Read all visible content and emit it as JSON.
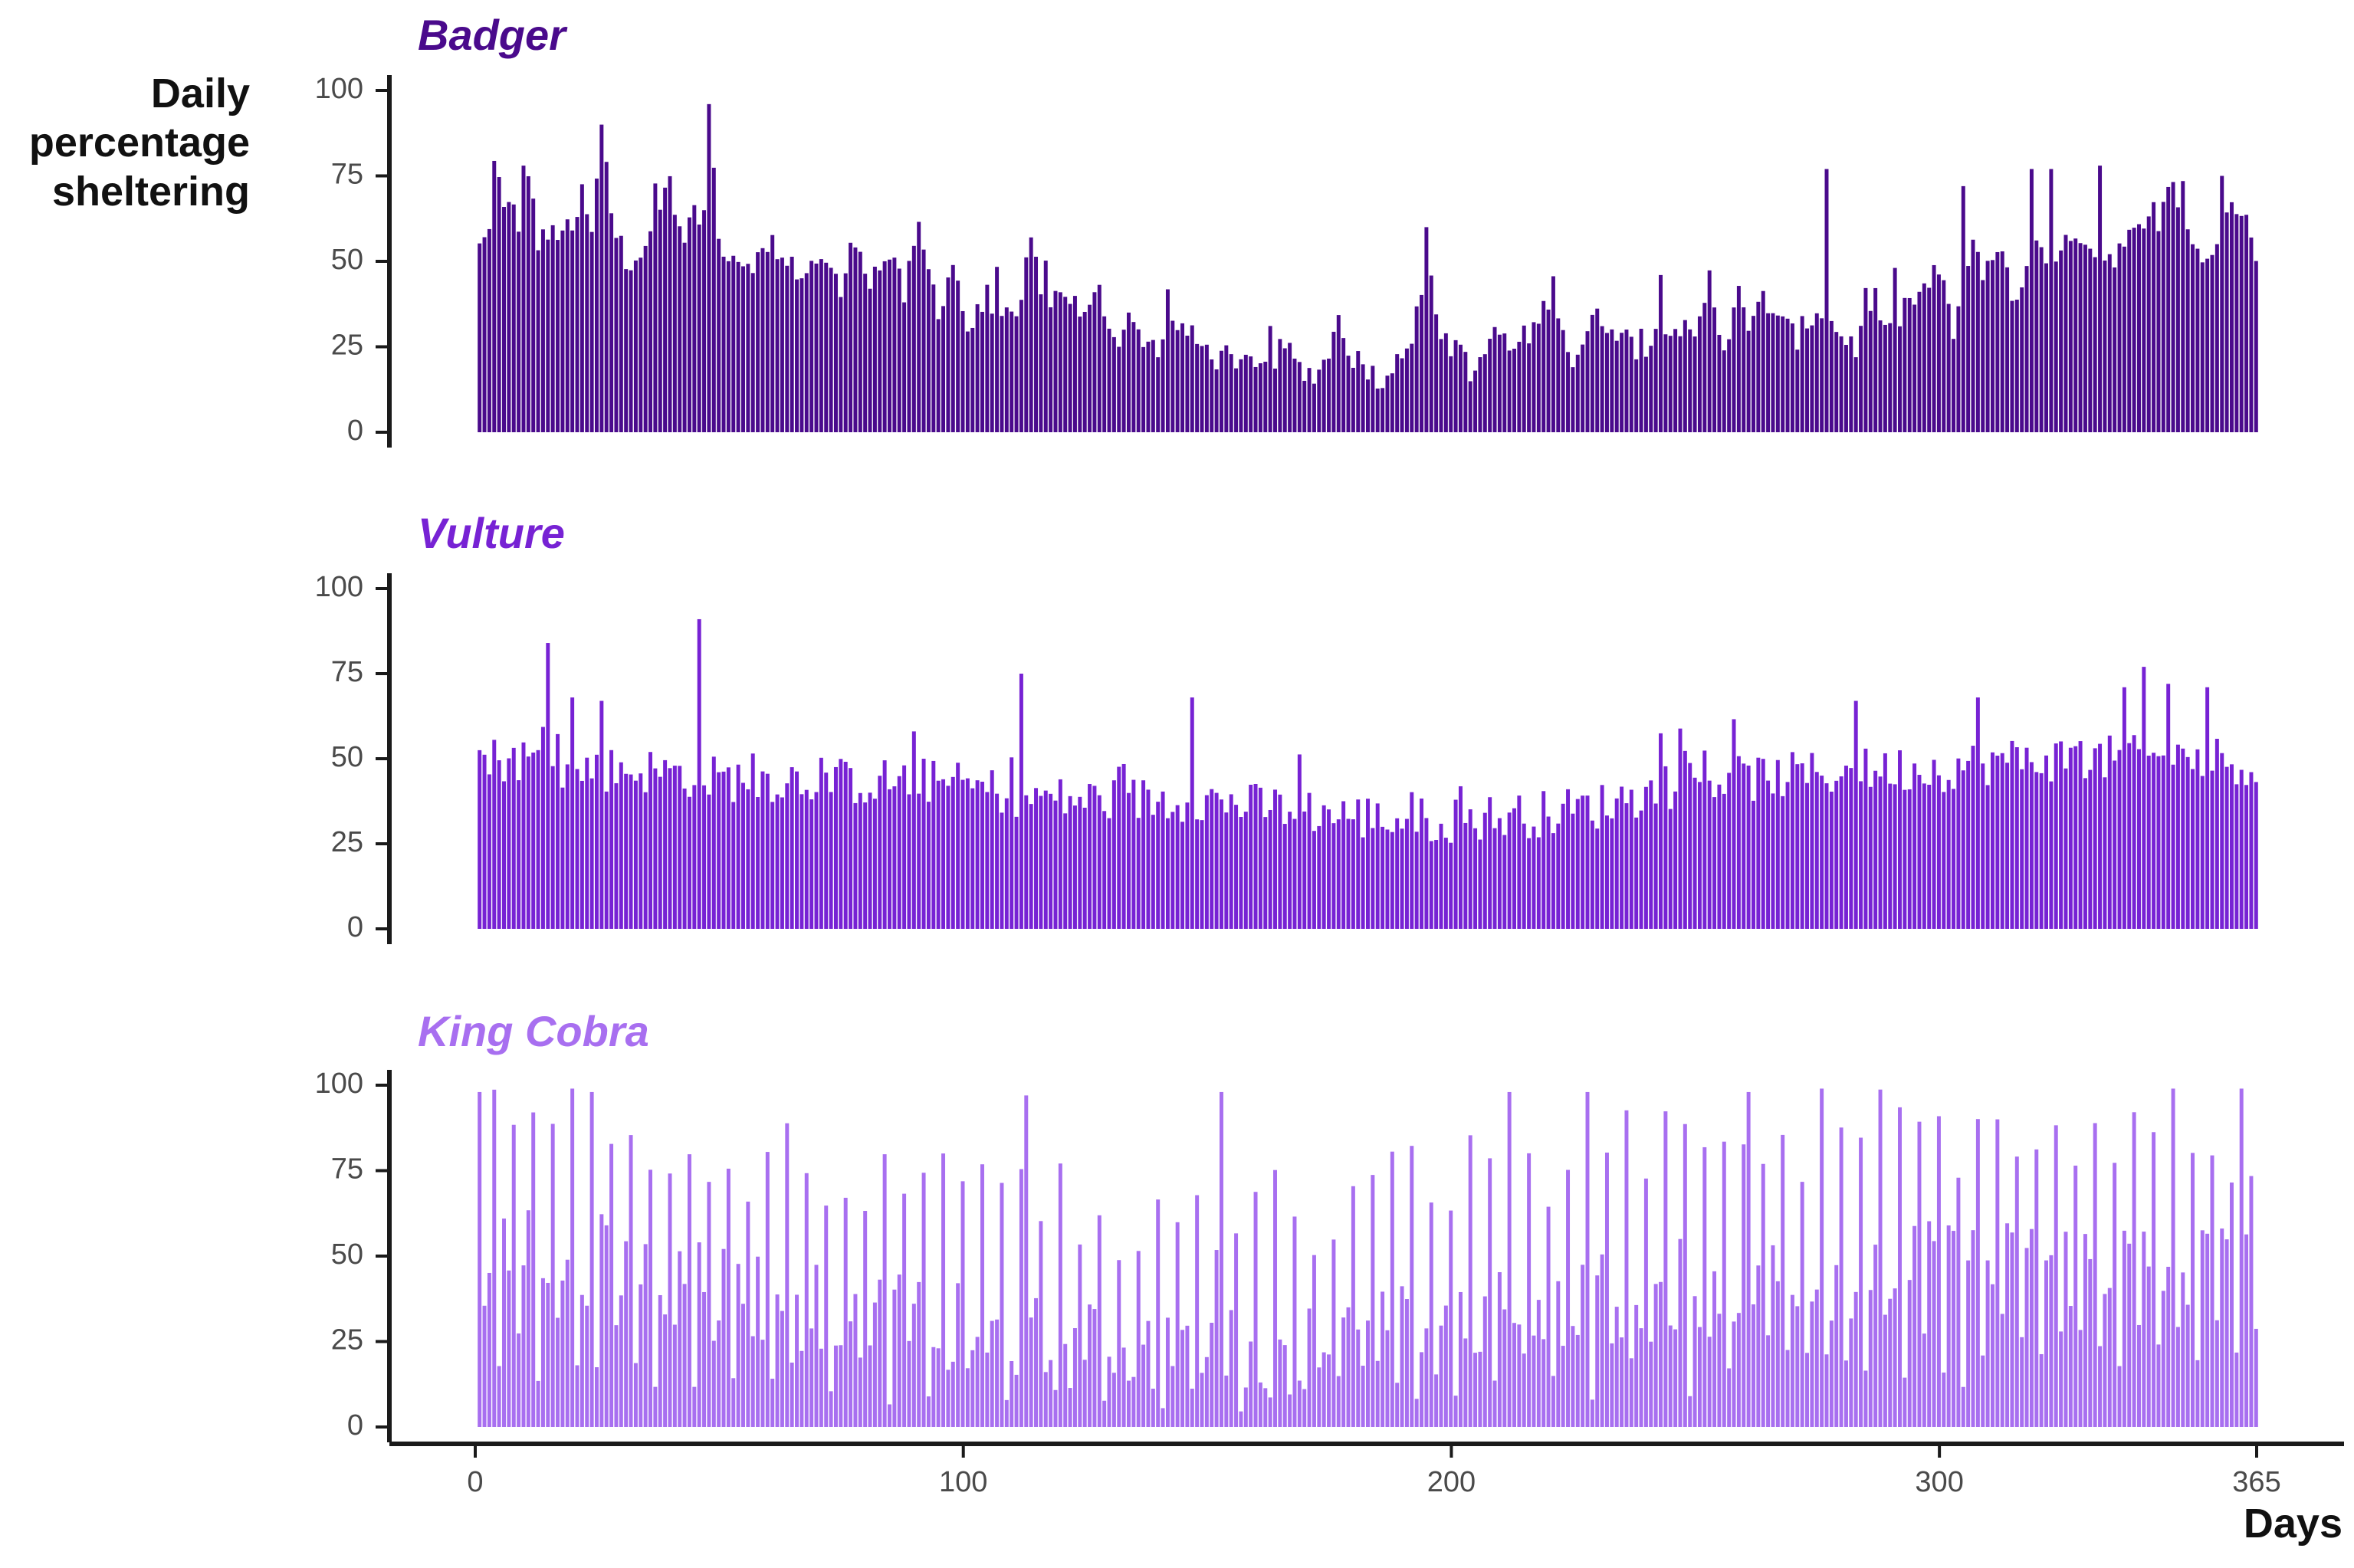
{
  "chart_data": {
    "type": "bar",
    "ylabel_lines": [
      "Daily",
      "percentage",
      "sheltering"
    ],
    "xlabel": "Days",
    "x_range": [
      1,
      365
    ],
    "x_ticks": [
      0,
      100,
      200,
      300,
      365
    ],
    "ylim": [
      0,
      100
    ],
    "y_ticks": [
      0,
      25,
      50,
      75,
      100
    ],
    "grid": false,
    "panels": [
      {
        "title": "Badger",
        "color": "#4a0a8c",
        "anchors": [
          [
            1,
            54
          ],
          [
            3,
            58
          ],
          [
            4,
            82
          ],
          [
            6,
            64
          ],
          [
            8,
            66
          ],
          [
            10,
            56
          ],
          [
            11,
            78
          ],
          [
            13,
            55
          ],
          [
            16,
            58
          ],
          [
            18,
            60
          ],
          [
            20,
            57
          ],
          [
            22,
            70
          ],
          [
            24,
            57
          ],
          [
            26,
            90
          ],
          [
            28,
            65
          ],
          [
            30,
            50
          ],
          [
            33,
            52
          ],
          [
            36,
            56
          ],
          [
            40,
            75
          ],
          [
            42,
            57
          ],
          [
            45,
            64
          ],
          [
            47,
            61
          ],
          [
            48,
            96
          ],
          [
            50,
            56
          ],
          [
            53,
            52
          ],
          [
            56,
            50
          ],
          [
            60,
            52
          ],
          [
            65,
            48
          ],
          [
            68,
            47
          ],
          [
            71,
            52
          ],
          [
            75,
            41
          ],
          [
            78,
            58
          ],
          [
            81,
            45
          ],
          [
            85,
            52
          ],
          [
            88,
            40
          ],
          [
            91,
            59
          ],
          [
            95,
            36
          ],
          [
            98,
            50
          ],
          [
            101,
            30
          ],
          [
            104,
            36
          ],
          [
            108,
            35
          ],
          [
            111,
            30
          ],
          [
            114,
            57
          ],
          [
            117,
            37
          ],
          [
            121,
            42
          ],
          [
            125,
            33
          ],
          [
            128,
            41
          ],
          [
            131,
            28
          ],
          [
            135,
            30
          ],
          [
            140,
            25
          ],
          [
            144,
            32
          ],
          [
            148,
            26
          ],
          [
            152,
            22
          ],
          [
            156,
            18
          ],
          [
            160,
            22
          ],
          [
            163,
            20
          ],
          [
            166,
            25
          ],
          [
            170,
            16
          ],
          [
            174,
            20
          ],
          [
            177,
            33
          ],
          [
            180,
            22
          ],
          [
            184,
            18
          ],
          [
            187,
            14
          ],
          [
            189,
            25
          ],
          [
            193,
            27
          ],
          [
            195,
            60
          ],
          [
            198,
            25
          ],
          [
            202,
            26
          ],
          [
            205,
            15
          ],
          [
            209,
            31
          ],
          [
            212,
            24
          ],
          [
            214,
            26
          ],
          [
            218,
            32
          ],
          [
            221,
            43
          ],
          [
            225,
            20
          ],
          [
            229,
            33
          ],
          [
            233,
            32
          ],
          [
            237,
            26
          ],
          [
            240,
            23
          ],
          [
            243,
            33
          ],
          [
            247,
            31
          ],
          [
            250,
            25
          ],
          [
            253,
            45
          ],
          [
            256,
            24
          ],
          [
            259,
            45
          ],
          [
            261,
            27
          ],
          [
            264,
            40
          ],
          [
            268,
            31
          ],
          [
            271,
            28
          ],
          [
            275,
            36
          ],
          [
            279,
            30
          ],
          [
            283,
            25
          ],
          [
            287,
            39
          ],
          [
            290,
            28
          ],
          [
            293,
            37
          ],
          [
            296,
            40
          ],
          [
            300,
            47
          ],
          [
            303,
            30
          ],
          [
            307,
            53
          ],
          [
            309,
            48
          ],
          [
            313,
            54
          ],
          [
            316,
            36
          ],
          [
            320,
            57
          ],
          [
            324,
            48
          ],
          [
            328,
            60
          ],
          [
            332,
            53
          ],
          [
            336,
            52
          ],
          [
            340,
            58
          ],
          [
            344,
            57
          ],
          [
            348,
            73
          ],
          [
            352,
            55
          ],
          [
            355,
            50
          ],
          [
            358,
            60
          ],
          [
            360,
            67
          ],
          [
            363,
            67
          ],
          [
            365,
            54
          ]
        ],
        "jitter": 4,
        "spikes": [
          [
            10,
            78
          ],
          [
            26,
            90
          ],
          [
            48,
            96
          ],
          [
            114,
            57
          ],
          [
            195,
            60
          ],
          [
            277,
            77
          ],
          [
            305,
            72
          ],
          [
            319,
            77
          ],
          [
            323,
            77
          ],
          [
            333,
            78
          ],
          [
            358,
            75
          ]
        ]
      },
      {
        "title": "Vulture",
        "color": "#7722d4",
        "anchors": [
          [
            1,
            50
          ],
          [
            10,
            50
          ],
          [
            20,
            47
          ],
          [
            30,
            47
          ],
          [
            40,
            46
          ],
          [
            50,
            44
          ],
          [
            60,
            44
          ],
          [
            70,
            44
          ],
          [
            80,
            43
          ],
          [
            90,
            44
          ],
          [
            100,
            42
          ],
          [
            110,
            40
          ],
          [
            120,
            38
          ],
          [
            130,
            38
          ],
          [
            140,
            38
          ],
          [
            150,
            38
          ],
          [
            160,
            36
          ],
          [
            170,
            35
          ],
          [
            180,
            33
          ],
          [
            190,
            32
          ],
          [
            200,
            32
          ],
          [
            210,
            33
          ],
          [
            220,
            34
          ],
          [
            230,
            36
          ],
          [
            240,
            40
          ],
          [
            250,
            44
          ],
          [
            260,
            44
          ],
          [
            270,
            45
          ],
          [
            280,
            46
          ],
          [
            290,
            47
          ],
          [
            300,
            47
          ],
          [
            310,
            49
          ],
          [
            320,
            50
          ],
          [
            330,
            50
          ],
          [
            340,
            50
          ],
          [
            350,
            50
          ],
          [
            360,
            50
          ],
          [
            365,
            47
          ]
        ],
        "jitter": 7,
        "spikes": [
          [
            15,
            84
          ],
          [
            20,
            68
          ],
          [
            26,
            67
          ],
          [
            46,
            91
          ],
          [
            112,
            75
          ],
          [
            147,
            68
          ],
          [
            283,
            67
          ],
          [
            308,
            68
          ],
          [
            338,
            71
          ],
          [
            342,
            77
          ],
          [
            347,
            72
          ],
          [
            355,
            71
          ]
        ]
      },
      {
        "title": "King Cobra",
        "color": "#a86ff0",
        "anchors": [
          [
            1,
            40
          ],
          [
            10,
            55
          ],
          [
            20,
            50
          ],
          [
            30,
            48
          ],
          [
            40,
            45
          ],
          [
            50,
            42
          ],
          [
            60,
            38
          ],
          [
            70,
            35
          ],
          [
            80,
            33
          ],
          [
            90,
            30
          ],
          [
            100,
            28
          ],
          [
            110,
            26
          ],
          [
            120,
            24
          ],
          [
            130,
            22
          ],
          [
            140,
            22
          ],
          [
            150,
            21
          ],
          [
            160,
            22
          ],
          [
            170,
            24
          ],
          [
            180,
            26
          ],
          [
            190,
            28
          ],
          [
            200,
            30
          ],
          [
            210,
            33
          ],
          [
            220,
            36
          ],
          [
            230,
            38
          ],
          [
            240,
            40
          ],
          [
            250,
            42
          ],
          [
            260,
            43
          ],
          [
            270,
            44
          ],
          [
            280,
            45
          ],
          [
            290,
            46
          ],
          [
            300,
            47
          ],
          [
            310,
            48
          ],
          [
            320,
            48
          ],
          [
            330,
            48
          ],
          [
            340,
            48
          ],
          [
            350,
            47
          ],
          [
            360,
            46
          ],
          [
            365,
            46
          ]
        ],
        "jitter": 14,
        "period": 4,
        "high": 80,
        "low_min": 1,
        "spikes": [
          [
            1,
            98
          ],
          [
            24,
            98
          ],
          [
            113,
            97
          ],
          [
            153,
            98
          ],
          [
            212,
            98
          ],
          [
            228,
            98
          ],
          [
            261,
            98
          ],
          [
            276,
            99
          ],
          [
            362,
            99
          ]
        ]
      }
    ]
  }
}
